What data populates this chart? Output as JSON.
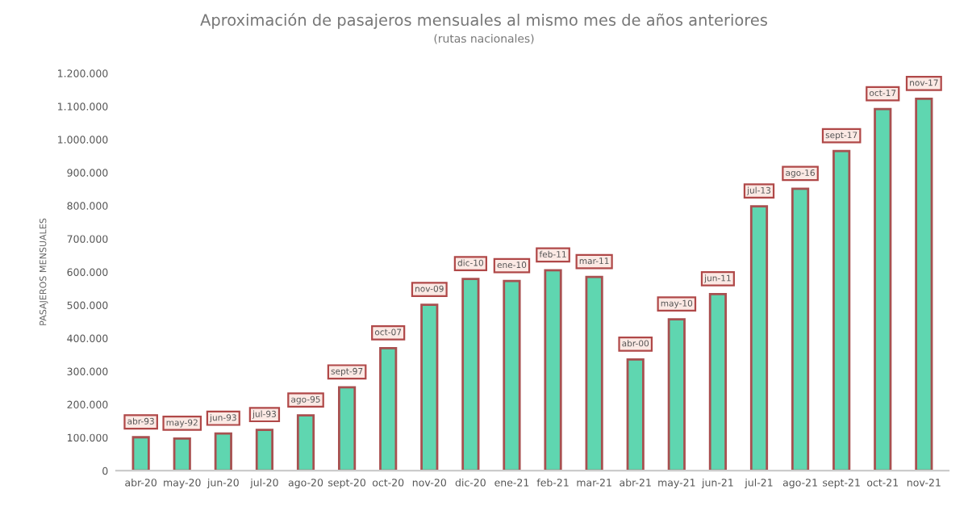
{
  "chart_data": {
    "type": "bar",
    "title": "Aproximación de pasajeros mensuales al mismo mes de años anteriores",
    "subtitle": "(rutas nacionales)",
    "ylabel": "PASAJEROS MENSUALES",
    "categories": [
      "abr-20",
      "may-20",
      "jun-20",
      "jul-20",
      "ago-20",
      "sept-20",
      "oct-20",
      "nov-20",
      "dic-20",
      "ene-21",
      "feb-21",
      "mar-21",
      "abr-21",
      "may-21",
      "jun-21",
      "jul-21",
      "ago-21",
      "sept-21",
      "oct-21",
      "nov-21"
    ],
    "values": [
      101000,
      97000,
      112000,
      123000,
      167000,
      252000,
      370000,
      501000,
      579000,
      573000,
      605000,
      585000,
      336000,
      457000,
      533000,
      798000,
      851000,
      965000,
      1092000,
      1123000
    ],
    "color": "#5fd6b0",
    "ylim": [
      0,
      1200000
    ],
    "yticks": [
      {
        "value": 0,
        "label": "0"
      },
      {
        "value": 100000,
        "label": "100.000"
      },
      {
        "value": 200000,
        "label": "200.000"
      },
      {
        "value": 300000,
        "label": "300.000"
      },
      {
        "value": 400000,
        "label": "400.000"
      },
      {
        "value": 500000,
        "label": "500.000"
      },
      {
        "value": 600000,
        "label": "600.000"
      },
      {
        "value": 700000,
        "label": "700.000"
      },
      {
        "value": 800000,
        "label": "800.000"
      },
      {
        "value": 900000,
        "label": "900.000"
      },
      {
        "value": 1000000,
        "label": "1.000.000"
      },
      {
        "value": 1100000,
        "label": "1.100.000"
      },
      {
        "value": 1200000,
        "label": "1.200.000"
      }
    ],
    "grid": false,
    "legend": false,
    "annotations": [
      {
        "text": "abr-93",
        "x": "abr-20",
        "y": 101000
      },
      {
        "text": "may-92",
        "x": "may-20",
        "y": 97000
      },
      {
        "text": "jun-93",
        "x": "jun-20",
        "y": 112000
      },
      {
        "text": "jul-93",
        "x": "jul-20",
        "y": 123000
      },
      {
        "text": "ago-95",
        "x": "ago-20",
        "y": 167000
      },
      {
        "text": "sept-97",
        "x": "sept-20",
        "y": 252000
      },
      {
        "text": "oct-07",
        "x": "oct-20",
        "y": 370000
      },
      {
        "text": "nov-09",
        "x": "nov-20",
        "y": 501000
      },
      {
        "text": "dic-10",
        "x": "dic-20",
        "y": 579000
      },
      {
        "text": "ene-10",
        "x": "ene-21",
        "y": 573000
      },
      {
        "text": "feb-11",
        "x": "feb-21",
        "y": 605000
      },
      {
        "text": "mar-11",
        "x": "mar-21",
        "y": 585000
      },
      {
        "text": "abr-00",
        "x": "abr-21",
        "y": 336000
      },
      {
        "text": "may-10",
        "x": "may-21",
        "y": 457000
      },
      {
        "text": "jun-11",
        "x": "jun-21",
        "y": 533000
      },
      {
        "text": "jul-13",
        "x": "jul-21",
        "y": 798000
      },
      {
        "text": "ago-16",
        "x": "ago-21",
        "y": 851000
      },
      {
        "text": "sept-17",
        "x": "sept-21",
        "y": 965000
      },
      {
        "text": "oct-17",
        "x": "oct-21",
        "y": 1092000
      },
      {
        "text": "nov-17",
        "x": "nov-21",
        "y": 1123000
      }
    ]
  }
}
